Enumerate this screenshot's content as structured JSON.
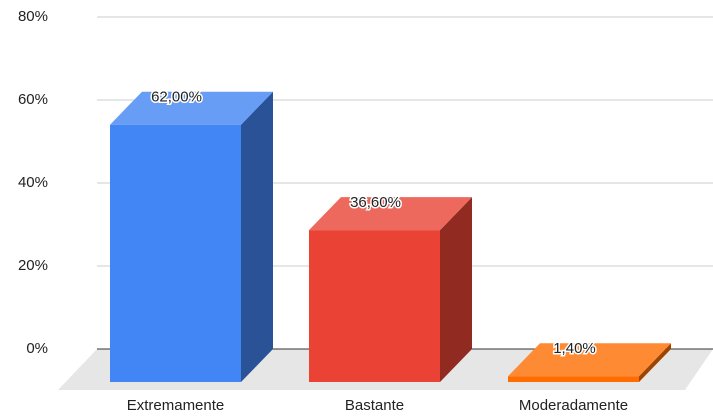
{
  "chart_data": {
    "type": "bar3d",
    "categories": [
      "Extremamente",
      "Bastante",
      "Moderadamente"
    ],
    "values": [
      62,
      36.6,
      1.4
    ],
    "value_labels": [
      "62,00%",
      "36,60%",
      "1,40%"
    ],
    "colors": [
      "#4285f4",
      "#ea4335",
      "#ff6d01"
    ],
    "ylim": [
      0,
      80
    ],
    "yticks": [
      {
        "value": 0,
        "label": "0%"
      },
      {
        "value": 20,
        "label": "20%"
      },
      {
        "value": 40,
        "label": "40%"
      },
      {
        "value": 60,
        "label": "60%"
      },
      {
        "value": 80,
        "label": "80%"
      }
    ],
    "grid": true
  }
}
